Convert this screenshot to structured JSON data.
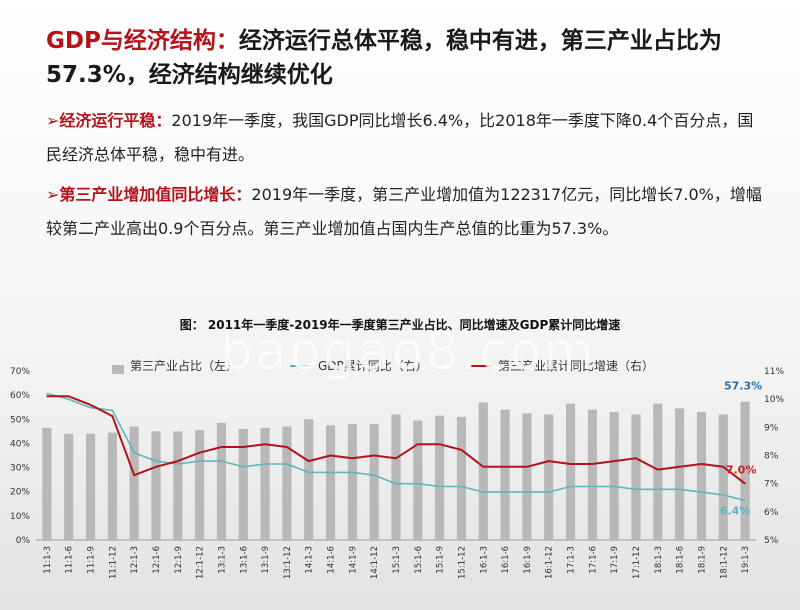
{
  "slide": {
    "title_highlight": "GDP与经济结构：",
    "title_rest": "经济运行总体平稳，稳中有进，第三产业占比为57.3%，经济结构继续优化",
    "bullets": [
      {
        "arrow": "➢",
        "lead": "经济运行平稳：",
        "text": "2019年一季度，我国GDP同比增长6.4%，比2018年一季度下降0.4个百分点，国民经济总体平稳，稳中有进。"
      },
      {
        "arrow": "➢",
        "lead": "第三产业增加值同比增长：",
        "text": "2019年一季度，第三产业增加值为122317亿元，同比增长7.0%，增幅较第二产业高出0.9个百分点。第三产业增加值占国内生产总值的比重为57.3%。"
      }
    ],
    "watermark": "baogao8.com"
  },
  "chart_data": {
    "type": "bar",
    "title": "图： 2011年一季度-2019年一季度第三产业占比、同比增速及GDP累计同比增速",
    "categories": [
      "11:1-3",
      "11:1-6",
      "11:1-9",
      "11:1-12",
      "12:1-3",
      "12:1-6",
      "12:1-9",
      "12:1-12",
      "13:1-3",
      "13:1-6",
      "13:1-9",
      "13:1-12",
      "14:1-3",
      "14:1-6",
      "14:1-9",
      "14:1-12",
      "15:1-3",
      "15:1-6",
      "15:1-9",
      "15:1-12",
      "16:1-3",
      "16:1-6",
      "16:1-9",
      "16:1-12",
      "17:1-3",
      "17:1-6",
      "17:1-9",
      "17:1-12",
      "18:1-3",
      "18:1-6",
      "18:1-9",
      "18:1-12",
      "19:1-3"
    ],
    "left_axis": {
      "ticks": [
        "0%",
        "10%",
        "20%",
        "30%",
        "40%",
        "50%",
        "60%",
        "70%"
      ],
      "ylim": [
        0,
        70
      ]
    },
    "right_axis": {
      "ticks": [
        "5%",
        "6%",
        "7%",
        "8%",
        "9%",
        "10%",
        "11%"
      ],
      "ylim": [
        5,
        11
      ]
    },
    "series": [
      {
        "name": "第三产业占比（左）",
        "axis": "left",
        "kind": "bar",
        "color": "#b8b8b8",
        "values": [
          46.5,
          44.0,
          44.0,
          44.5,
          47.0,
          45.0,
          45.0,
          45.5,
          48.5,
          46.0,
          46.5,
          47.0,
          50.0,
          47.5,
          48.0,
          48.0,
          52.0,
          49.5,
          51.5,
          51.0,
          57.0,
          54.0,
          52.5,
          52.0,
          56.5,
          54.0,
          53.0,
          52.0,
          56.5,
          54.5,
          53.0,
          52.0,
          57.3
        ]
      },
      {
        "name": "GDP累计同比（右）",
        "axis": "right",
        "kind": "line",
        "color": "#5fb6bd",
        "values": [
          10.2,
          10.0,
          9.7,
          9.6,
          8.1,
          7.8,
          7.7,
          7.8,
          7.8,
          7.6,
          7.7,
          7.7,
          7.4,
          7.4,
          7.4,
          7.3,
          7.0,
          7.0,
          6.9,
          6.9,
          6.7,
          6.7,
          6.7,
          6.7,
          6.9,
          6.9,
          6.9,
          6.8,
          6.8,
          6.8,
          6.7,
          6.6,
          6.4
        ]
      },
      {
        "name": "第三产业累计同比增速（右）",
        "axis": "right",
        "kind": "line",
        "color": "#b3141c",
        "values": [
          10.1,
          10.1,
          9.8,
          9.4,
          7.3,
          7.6,
          7.8,
          8.1,
          8.3,
          8.3,
          8.4,
          8.3,
          7.8,
          8.0,
          7.9,
          8.0,
          7.9,
          8.4,
          8.4,
          8.2,
          7.6,
          7.6,
          7.6,
          7.8,
          7.7,
          7.7,
          7.8,
          7.9,
          7.5,
          7.6,
          7.7,
          7.6,
          7.0
        ]
      }
    ],
    "annotations": {
      "share_last": "57.3%",
      "tertiary_last": "7.0%",
      "gdp_last": "6.4%"
    },
    "grid": false,
    "legend": "top"
  }
}
